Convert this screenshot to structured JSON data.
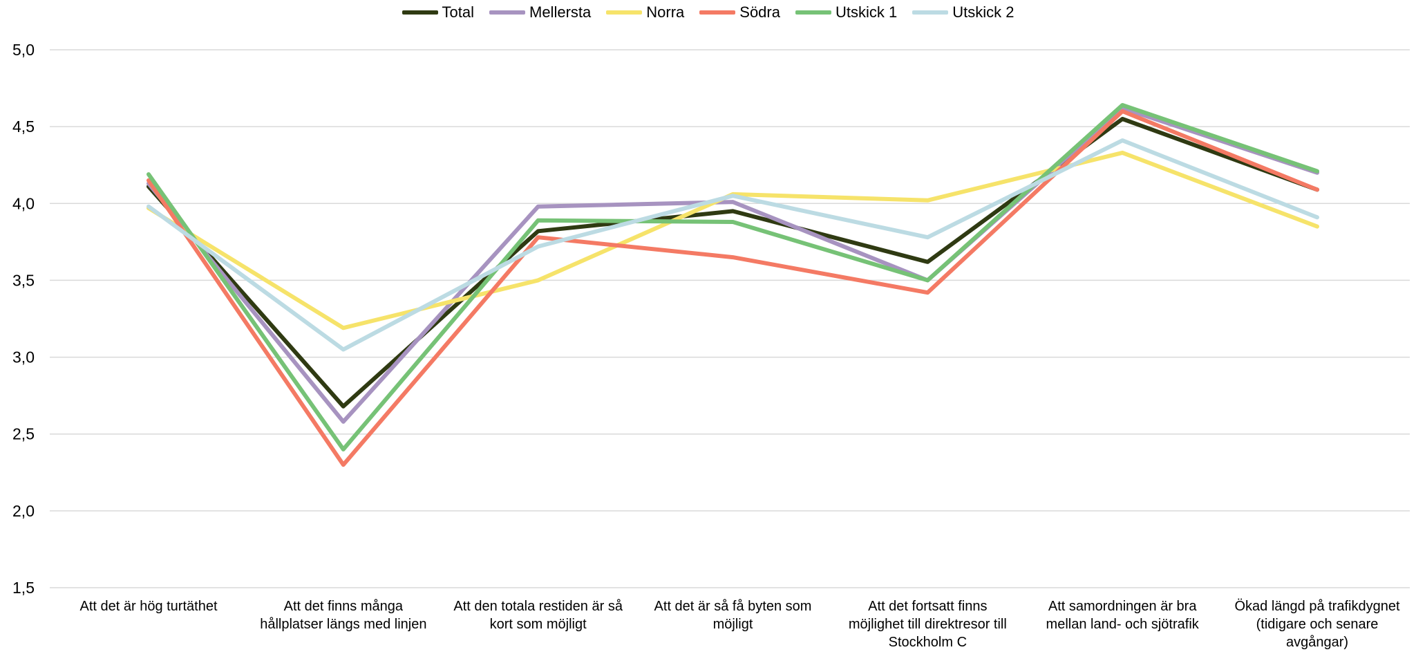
{
  "chart_data": {
    "type": "line",
    "categories": [
      [
        "Att det är hög turtäthet"
      ],
      [
        "Att det finns många",
        "hållplatser längs med linjen"
      ],
      [
        "Att den totala restiden är så",
        "kort som möjligt"
      ],
      [
        "Att det är så få byten som",
        "möjligt"
      ],
      [
        "Att det fortsatt finns",
        "möjlighet till direktresor till",
        "Stockholm C"
      ],
      [
        "Att samordningen är bra",
        "mellan land- och sjötrafik"
      ],
      [
        "Ökad längd på trafikdygnet",
        "(tidigare och senare",
        "avgångar)"
      ]
    ],
    "series": [
      {
        "name": "Total",
        "color": "#2f3a12",
        "values": [
          4.11,
          2.68,
          3.82,
          3.95,
          3.62,
          4.55,
          4.09
        ]
      },
      {
        "name": "Mellersta",
        "color": "#a793c0",
        "values": [
          4.13,
          2.58,
          3.98,
          4.01,
          3.5,
          4.62,
          4.2
        ]
      },
      {
        "name": "Norra",
        "color": "#f6e36a",
        "values": [
          3.97,
          3.19,
          3.5,
          4.06,
          4.02,
          4.33,
          3.85
        ]
      },
      {
        "name": "Södra",
        "color": "#f47a64",
        "values": [
          4.15,
          2.3,
          3.78,
          3.65,
          3.42,
          4.6,
          4.09
        ]
      },
      {
        "name": "Utskick 1",
        "color": "#76c276",
        "values": [
          4.19,
          2.4,
          3.89,
          3.88,
          3.5,
          4.64,
          4.21
        ]
      },
      {
        "name": "Utskick 2",
        "color": "#bcdbe3",
        "values": [
          3.98,
          3.05,
          3.72,
          4.05,
          3.78,
          4.41,
          3.91
        ]
      }
    ],
    "ylim": [
      1.5,
      5.0
    ],
    "yticks": [
      "1,5",
      "2,0",
      "2,5",
      "3,0",
      "3,5",
      "4,0",
      "4,5",
      "5,0"
    ],
    "grid": true,
    "legend_position": "top"
  }
}
